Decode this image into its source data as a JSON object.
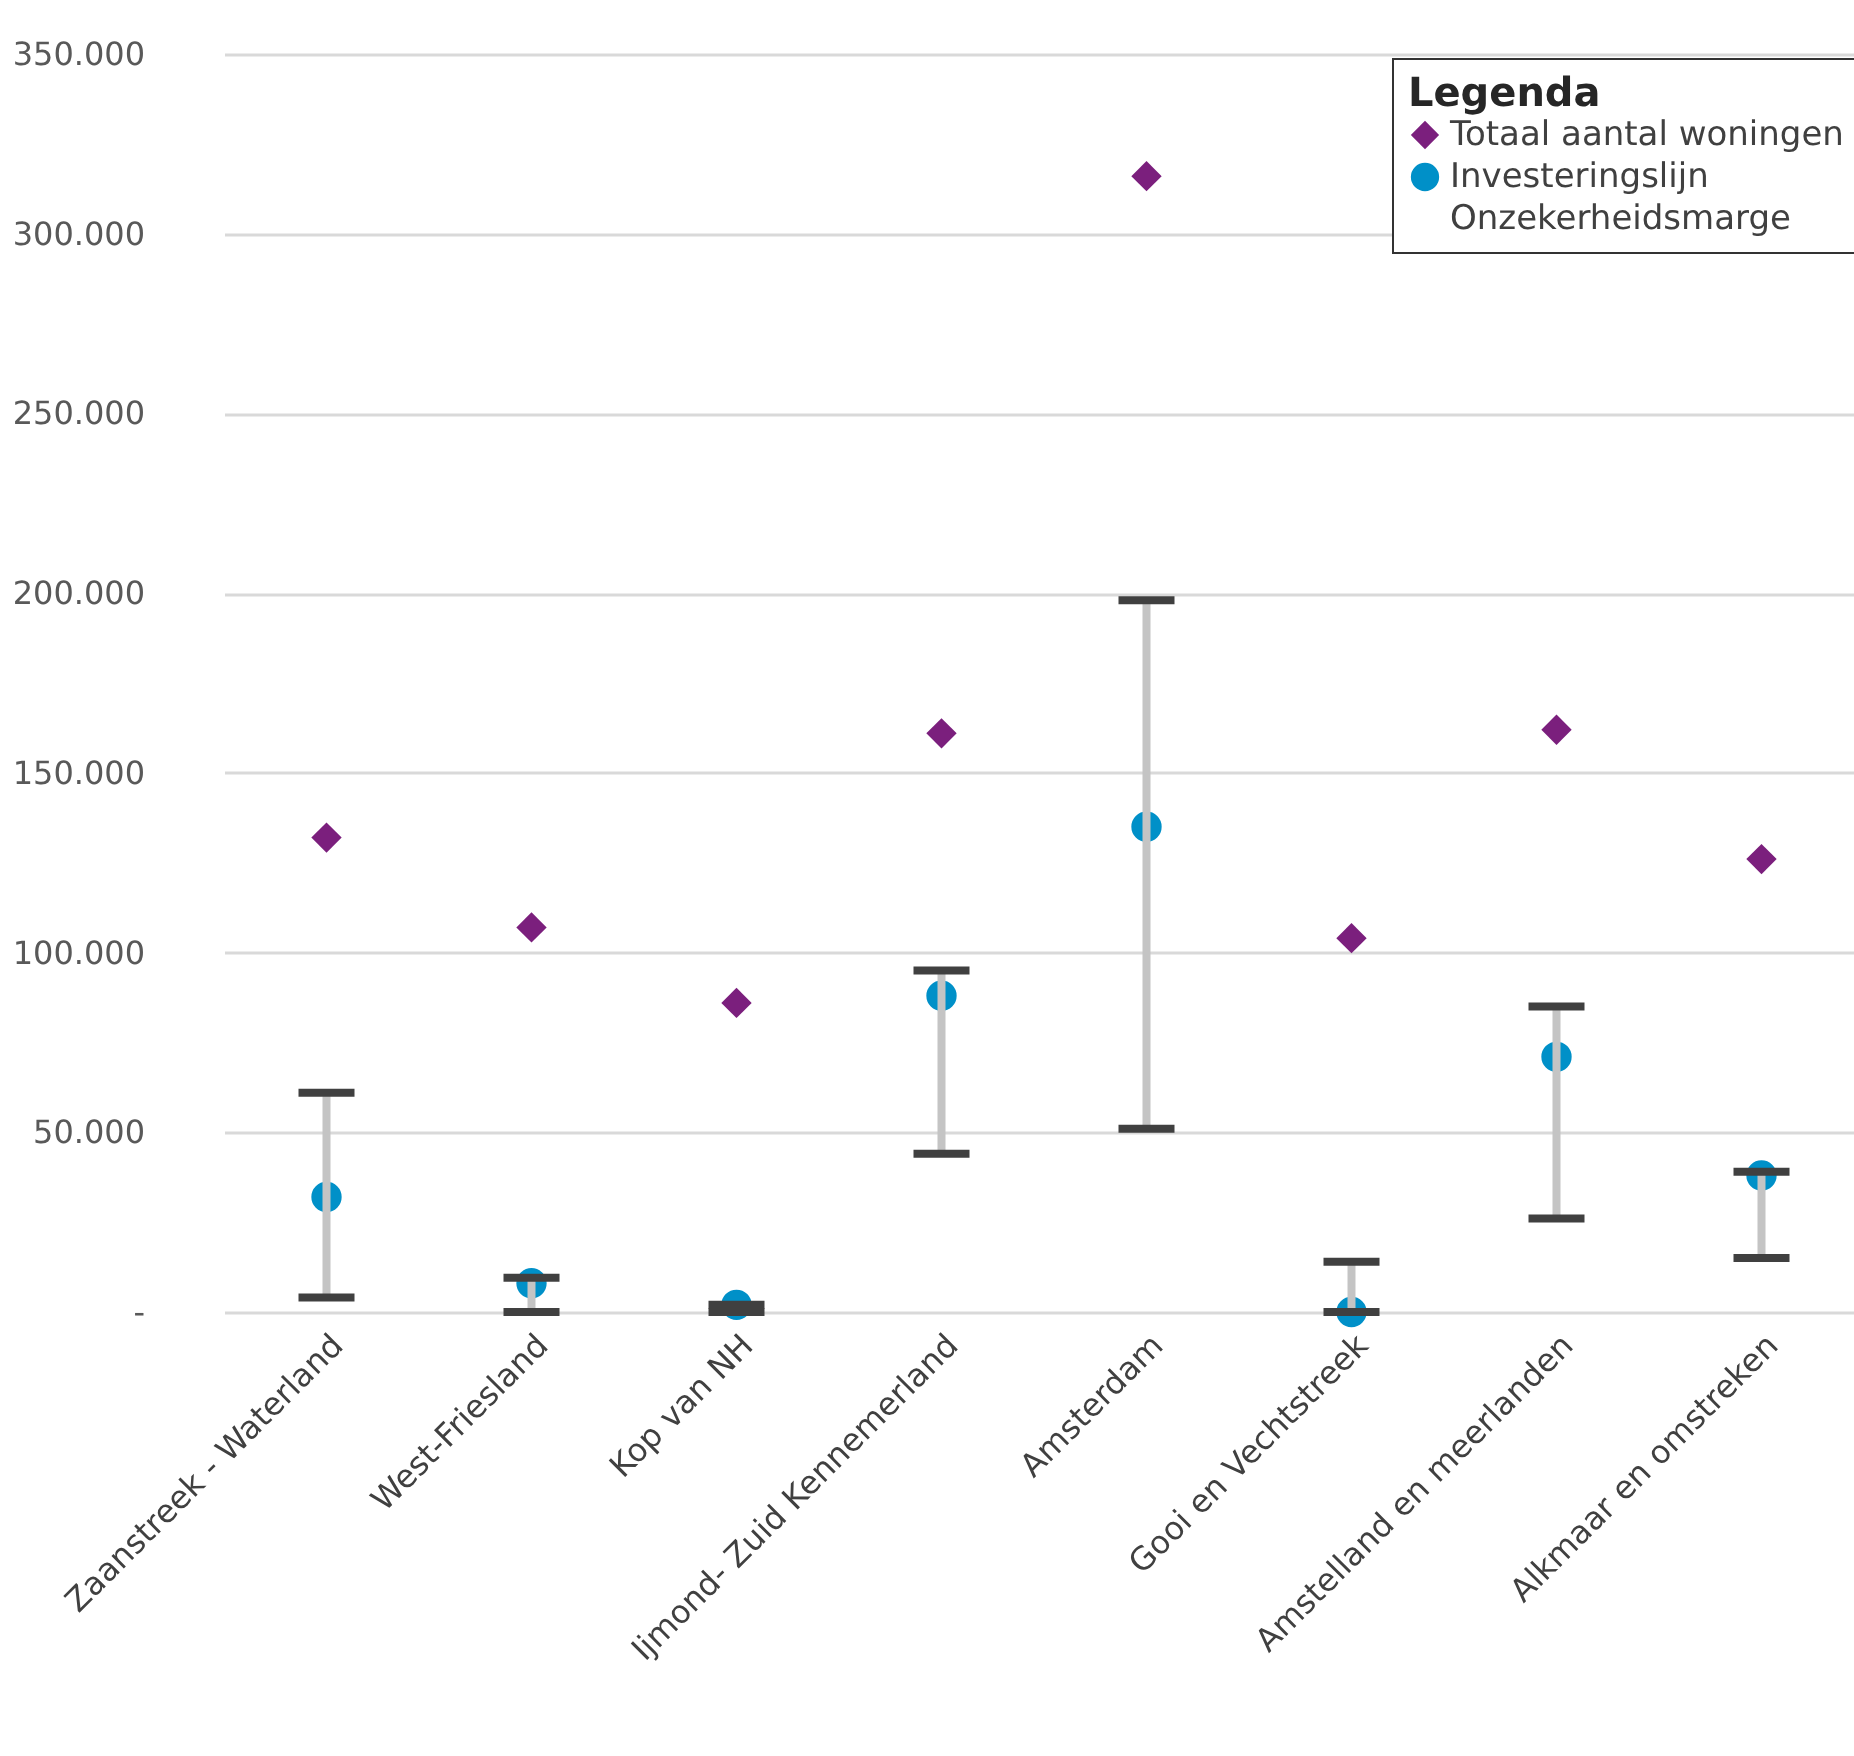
{
  "chart_data": {
    "type": "scatter",
    "legend_title": "Legenda",
    "legend": "top right",
    "grid": "y",
    "categories": [
      "Zaanstreek - Waterland",
      "West-Friesland",
      "Kop van NH",
      "Ijmond- Zuid Kennemerland",
      "Amsterdam",
      "Gooi en Vechtstreek",
      "Amstelland en meerlanden",
      "Alkmaar en omstreken"
    ],
    "ylim": [
      0,
      350000
    ],
    "yticks": [
      {
        "value": 0,
        "label": "-"
      },
      {
        "value": 50000,
        "label": "50.000"
      },
      {
        "value": 100000,
        "label": "100.000"
      },
      {
        "value": 150000,
        "label": "150.000"
      },
      {
        "value": 200000,
        "label": "200.000"
      },
      {
        "value": 250000,
        "label": "250.000"
      },
      {
        "value": 300000,
        "label": "300.000"
      },
      {
        "value": 350000,
        "label": "350.000"
      }
    ],
    "annotations": [
      "Onzekerheidsmarge"
    ],
    "series": [
      {
        "name": "Totaal aantal woningen",
        "color": "#7b1f7d",
        "marker": "diamond",
        "values": [
          132000,
          107000,
          86000,
          161000,
          316000,
          104000,
          162000,
          126000
        ]
      },
      {
        "name": "Investeringslijn",
        "color": "#0090c8",
        "marker": "circle",
        "values": [
          32000,
          8000,
          2000,
          88000,
          135000,
          0,
          71000,
          38000
        ],
        "errors": [
          [
            4000,
            61000
          ],
          [
            0,
            9500
          ],
          [
            0,
            2000
          ],
          [
            44000,
            95000
          ],
          [
            51000,
            198000
          ],
          [
            0,
            14000
          ],
          [
            26000,
            85000
          ],
          [
            15000,
            39000
          ]
        ]
      }
    ]
  }
}
